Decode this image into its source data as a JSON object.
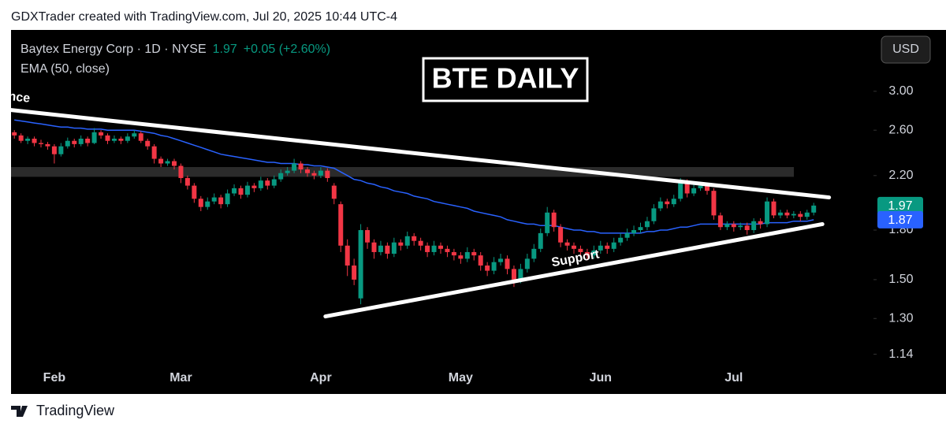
{
  "header": "GDXTrader created with TradingView.com, Jul 20, 2025 10:44 UTC-4",
  "footer": "TradingView",
  "chart_data": {
    "type": "candlestick",
    "title": "BTE DAILY",
    "symbol": "Baytex Energy Corp · 1D · NYSE",
    "price": 1.97,
    "change": "+0.05 (+2.60%)",
    "currency": "USD",
    "log_scale": true,
    "up_color": "#089981",
    "down_color": "#f23645",
    "categories": [
      null,
      null,
      null,
      null,
      null,
      null,
      "Feb",
      null,
      null,
      null,
      null,
      null,
      null,
      null,
      null,
      null,
      null,
      null,
      null,
      null,
      null,
      null,
      null,
      null,
      null,
      "Mar",
      null,
      null,
      null,
      null,
      null,
      null,
      null,
      null,
      null,
      null,
      null,
      null,
      null,
      null,
      null,
      null,
      null,
      null,
      null,
      null,
      "Apr",
      null,
      null,
      null,
      null,
      null,
      null,
      null,
      null,
      null,
      null,
      null,
      null,
      null,
      null,
      null,
      null,
      null,
      null,
      null,
      null,
      "May",
      null,
      null,
      null,
      null,
      null,
      null,
      null,
      null,
      null,
      null,
      null,
      null,
      null,
      null,
      null,
      null,
      null,
      null,
      null,
      null,
      "Jun",
      null,
      null,
      null,
      null,
      null,
      null,
      null,
      null,
      null,
      null,
      null,
      null,
      null,
      null,
      null,
      null,
      null,
      null,
      null,
      "Jul",
      null,
      null,
      null,
      null,
      null,
      null,
      null,
      null,
      null,
      null,
      null,
      null
    ],
    "ohlc": [
      [
        2.58,
        2.6,
        2.52,
        2.55
      ],
      [
        2.55,
        2.57,
        2.48,
        2.5
      ],
      [
        2.5,
        2.54,
        2.47,
        2.52
      ],
      [
        2.52,
        2.54,
        2.45,
        2.48
      ],
      [
        2.48,
        2.51,
        2.44,
        2.47
      ],
      [
        2.47,
        2.49,
        2.42,
        2.45
      ],
      [
        2.45,
        2.47,
        2.3,
        2.38
      ],
      [
        2.38,
        2.48,
        2.36,
        2.45
      ],
      [
        2.45,
        2.53,
        2.43,
        2.5
      ],
      [
        2.5,
        2.52,
        2.44,
        2.47
      ],
      [
        2.47,
        2.55,
        2.45,
        2.52
      ],
      [
        2.52,
        2.54,
        2.45,
        2.48
      ],
      [
        2.48,
        2.62,
        2.47,
        2.58
      ],
      [
        2.58,
        2.6,
        2.52,
        2.55
      ],
      [
        2.55,
        2.57,
        2.47,
        2.5
      ],
      [
        2.5,
        2.55,
        2.48,
        2.52
      ],
      [
        2.52,
        2.54,
        2.47,
        2.5
      ],
      [
        2.5,
        2.57,
        2.48,
        2.54
      ],
      [
        2.54,
        2.6,
        2.52,
        2.57
      ],
      [
        2.57,
        2.59,
        2.48,
        2.5
      ],
      [
        2.5,
        2.52,
        2.42,
        2.45
      ],
      [
        2.45,
        2.47,
        2.3,
        2.34
      ],
      [
        2.34,
        2.36,
        2.27,
        2.3
      ],
      [
        2.3,
        2.34,
        2.28,
        2.32
      ],
      [
        2.32,
        2.34,
        2.25,
        2.28
      ],
      [
        2.28,
        2.3,
        2.14,
        2.18
      ],
      [
        2.18,
        2.2,
        2.09,
        2.12
      ],
      [
        2.12,
        2.14,
        1.99,
        2.02
      ],
      [
        2.02,
        2.04,
        1.93,
        1.96
      ],
      [
        1.96,
        2.03,
        1.94,
        2.0
      ],
      [
        2.0,
        2.06,
        1.98,
        2.03
      ],
      [
        2.03,
        2.05,
        1.95,
        1.98
      ],
      [
        1.98,
        2.09,
        1.96,
        2.06
      ],
      [
        2.06,
        2.13,
        2.04,
        2.1
      ],
      [
        2.1,
        2.12,
        2.02,
        2.05
      ],
      [
        2.05,
        2.15,
        2.03,
        2.12
      ],
      [
        2.12,
        2.14,
        2.07,
        2.1
      ],
      [
        2.1,
        2.19,
        2.08,
        2.16
      ],
      [
        2.16,
        2.18,
        2.09,
        2.12
      ],
      [
        2.12,
        2.2,
        2.1,
        2.17
      ],
      [
        2.17,
        2.25,
        2.15,
        2.22
      ],
      [
        2.22,
        2.27,
        2.2,
        2.24
      ],
      [
        2.24,
        2.34,
        2.22,
        2.3
      ],
      [
        2.3,
        2.32,
        2.22,
        2.25
      ],
      [
        2.25,
        2.27,
        2.19,
        2.22
      ],
      [
        2.22,
        2.24,
        2.17,
        2.2
      ],
      [
        2.2,
        2.27,
        2.18,
        2.24
      ],
      [
        2.24,
        2.26,
        2.15,
        2.18
      ],
      [
        2.12,
        2.14,
        1.98,
        2.02
      ],
      [
        1.98,
        2.0,
        1.66,
        1.7
      ],
      [
        1.7,
        1.74,
        1.52,
        1.58
      ],
      [
        1.58,
        1.62,
        1.47,
        1.5
      ],
      [
        1.4,
        1.84,
        1.37,
        1.8
      ],
      [
        1.8,
        1.82,
        1.68,
        1.72
      ],
      [
        1.72,
        1.74,
        1.62,
        1.66
      ],
      [
        1.66,
        1.73,
        1.64,
        1.7
      ],
      [
        1.7,
        1.72,
        1.62,
        1.65
      ],
      [
        1.65,
        1.75,
        1.63,
        1.72
      ],
      [
        1.72,
        1.74,
        1.67,
        1.7
      ],
      [
        1.7,
        1.79,
        1.68,
        1.76
      ],
      [
        1.76,
        1.78,
        1.7,
        1.73
      ],
      [
        1.73,
        1.75,
        1.67,
        1.7
      ],
      [
        1.7,
        1.72,
        1.63,
        1.66
      ],
      [
        1.66,
        1.73,
        1.64,
        1.7
      ],
      [
        1.7,
        1.72,
        1.65,
        1.68
      ],
      [
        1.68,
        1.7,
        1.63,
        1.66
      ],
      [
        1.66,
        1.68,
        1.61,
        1.64
      ],
      [
        1.64,
        1.66,
        1.59,
        1.62
      ],
      [
        1.62,
        1.69,
        1.6,
        1.66
      ],
      [
        1.66,
        1.68,
        1.61,
        1.64
      ],
      [
        1.64,
        1.66,
        1.55,
        1.58
      ],
      [
        1.58,
        1.6,
        1.52,
        1.55
      ],
      [
        1.55,
        1.63,
        1.53,
        1.6
      ],
      [
        1.6,
        1.65,
        1.58,
        1.62
      ],
      [
        1.62,
        1.64,
        1.53,
        1.56
      ],
      [
        1.56,
        1.58,
        1.46,
        1.5
      ],
      [
        1.5,
        1.59,
        1.48,
        1.56
      ],
      [
        1.56,
        1.65,
        1.54,
        1.62
      ],
      [
        1.62,
        1.71,
        1.6,
        1.68
      ],
      [
        1.68,
        1.81,
        1.66,
        1.78
      ],
      [
        1.78,
        1.96,
        1.76,
        1.92
      ],
      [
        1.92,
        1.94,
        1.79,
        1.82
      ],
      [
        1.82,
        1.84,
        1.69,
        1.72
      ],
      [
        1.72,
        1.74,
        1.67,
        1.7
      ],
      [
        1.7,
        1.72,
        1.65,
        1.68
      ],
      [
        1.68,
        1.7,
        1.63,
        1.66
      ],
      [
        1.66,
        1.68,
        1.61,
        1.64
      ],
      [
        1.64,
        1.7,
        1.62,
        1.67
      ],
      [
        1.67,
        1.73,
        1.65,
        1.7
      ],
      [
        1.7,
        1.72,
        1.65,
        1.68
      ],
      [
        1.68,
        1.75,
        1.66,
        1.72
      ],
      [
        1.72,
        1.78,
        1.7,
        1.75
      ],
      [
        1.75,
        1.81,
        1.73,
        1.78
      ],
      [
        1.78,
        1.83,
        1.76,
        1.8
      ],
      [
        1.8,
        1.85,
        1.78,
        1.82
      ],
      [
        1.82,
        1.89,
        1.8,
        1.86
      ],
      [
        1.86,
        1.98,
        1.84,
        1.95
      ],
      [
        1.95,
        2.03,
        1.93,
        2.0
      ],
      [
        2.0,
        2.02,
        1.95,
        1.98
      ],
      [
        1.98,
        2.05,
        1.96,
        2.02
      ],
      [
        2.02,
        2.18,
        2.0,
        2.15
      ],
      [
        2.15,
        2.17,
        2.03,
        2.06
      ],
      [
        2.06,
        2.13,
        2.04,
        2.1
      ],
      [
        2.1,
        2.15,
        2.08,
        2.12
      ],
      [
        2.12,
        2.14,
        2.05,
        2.08
      ],
      [
        2.08,
        2.1,
        1.87,
        1.9
      ],
      [
        1.9,
        1.92,
        1.8,
        1.82
      ],
      [
        1.82,
        1.86,
        1.8,
        1.84
      ],
      [
        1.84,
        1.86,
        1.79,
        1.82
      ],
      [
        1.82,
        1.85,
        1.8,
        1.83
      ],
      [
        1.83,
        1.85,
        1.77,
        1.8
      ],
      [
        1.8,
        1.88,
        1.78,
        1.86
      ],
      [
        1.86,
        1.88,
        1.81,
        1.84
      ],
      [
        1.84,
        2.03,
        1.82,
        2.0
      ],
      [
        2.0,
        2.02,
        1.88,
        1.9
      ],
      [
        1.9,
        1.94,
        1.88,
        1.92
      ],
      [
        1.92,
        1.94,
        1.88,
        1.9
      ],
      [
        1.9,
        1.93,
        1.88,
        1.91
      ],
      [
        1.91,
        1.93,
        1.86,
        1.89
      ],
      [
        1.89,
        1.94,
        1.87,
        1.92
      ],
      [
        1.92,
        1.99,
        1.9,
        1.97
      ]
    ],
    "ema": {
      "name": "EMA (50, close)",
      "color": "#2962ff",
      "values": [
        2.7,
        2.69,
        2.68,
        2.67,
        2.66,
        2.65,
        2.64,
        2.63,
        2.63,
        2.62,
        2.62,
        2.61,
        2.61,
        2.61,
        2.6,
        2.6,
        2.6,
        2.6,
        2.6,
        2.59,
        2.58,
        2.57,
        2.55,
        2.54,
        2.52,
        2.5,
        2.48,
        2.46,
        2.44,
        2.42,
        2.4,
        2.38,
        2.37,
        2.36,
        2.35,
        2.34,
        2.33,
        2.32,
        2.31,
        2.31,
        2.3,
        2.3,
        2.3,
        2.29,
        2.29,
        2.28,
        2.28,
        2.27,
        2.26,
        2.23,
        2.2,
        2.17,
        2.16,
        2.14,
        2.13,
        2.11,
        2.1,
        2.08,
        2.07,
        2.06,
        2.04,
        2.03,
        2.02,
        2.0,
        1.99,
        1.98,
        1.97,
        1.96,
        1.95,
        1.93,
        1.92,
        1.91,
        1.9,
        1.89,
        1.87,
        1.86,
        1.85,
        1.84,
        1.84,
        1.83,
        1.83,
        1.83,
        1.82,
        1.81,
        1.8,
        1.8,
        1.79,
        1.79,
        1.78,
        1.78,
        1.78,
        1.78,
        1.78,
        1.78,
        1.78,
        1.79,
        1.79,
        1.8,
        1.8,
        1.81,
        1.82,
        1.82,
        1.83,
        1.84,
        1.84,
        1.84,
        1.84,
        1.84,
        1.84,
        1.84,
        1.84,
        1.84,
        1.84,
        1.85,
        1.85,
        1.85,
        1.85,
        1.86,
        1.86,
        1.86,
        1.87
      ]
    },
    "zone": [
      2.19,
      2.27
    ],
    "trendlines": [
      {
        "label": "Resistance",
        "x": [
          -0.5,
          122.3
        ],
        "y": [
          2.8,
          2.03
        ]
      },
      {
        "label": "Support",
        "x": [
          46.7,
          121.3
        ],
        "y": [
          1.31,
          1.84
        ]
      }
    ],
    "ylim": [
      1.09,
      3.76
    ],
    "yticks": [
      {
        "value": 3,
        "label": "3.00"
      },
      {
        "value": 2.6,
        "label": "2.60"
      },
      {
        "value": 2.2,
        "label": "2.20"
      },
      {
        "value": 1.8,
        "label": "1.80"
      },
      {
        "value": 1.5,
        "label": "1.50"
      },
      {
        "value": 1.3,
        "label": "1.30"
      },
      1.14
    ]
  }
}
